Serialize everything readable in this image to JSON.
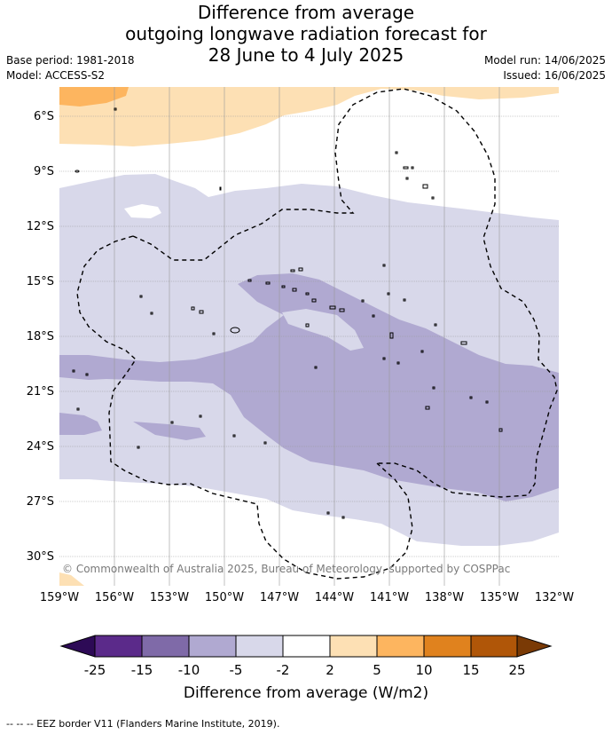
{
  "title": {
    "line1": "Difference from average",
    "line2": "outgoing longwave radiation forecast for",
    "line3": "28 June to 4 July 2025"
  },
  "meta": {
    "base_period": "Base period: 1981-2018",
    "model": "Model: ACCESS-S2",
    "model_run": "Model run: 14/06/2025",
    "issued": "Issued: 16/06/2025"
  },
  "map": {
    "lat_labels": [
      "6°S",
      "9°S",
      "12°S",
      "15°S",
      "18°S",
      "21°S",
      "24°S",
      "27°S",
      "30°S"
    ],
    "lon_labels": [
      "159°W",
      "156°W",
      "153°W",
      "150°W",
      "147°W",
      "144°W",
      "141°W",
      "138°W",
      "135°W",
      "132°W"
    ],
    "copyright": "© Commonwealth of Australia 2025, Bureau of Meteorology, supported by COSPPac"
  },
  "colorbar": {
    "tick_labels": [
      "-25",
      "-15",
      "-10",
      "-5",
      "-2",
      "2",
      "5",
      "10",
      "15",
      "25"
    ],
    "colors": [
      "#2d0a56",
      "#5b2a8a",
      "#7f6aa8",
      "#b0a9d1",
      "#d8d8ea",
      "#ffffff",
      "#fde0b4",
      "#fdb55f",
      "#e0821e",
      "#b05608",
      "#7a3a05"
    ],
    "title": "Difference from average (W/m2)"
  },
  "footnote": "--  --  -- EEZ border V11 (Flanders Marine Institute, 2019)."
}
